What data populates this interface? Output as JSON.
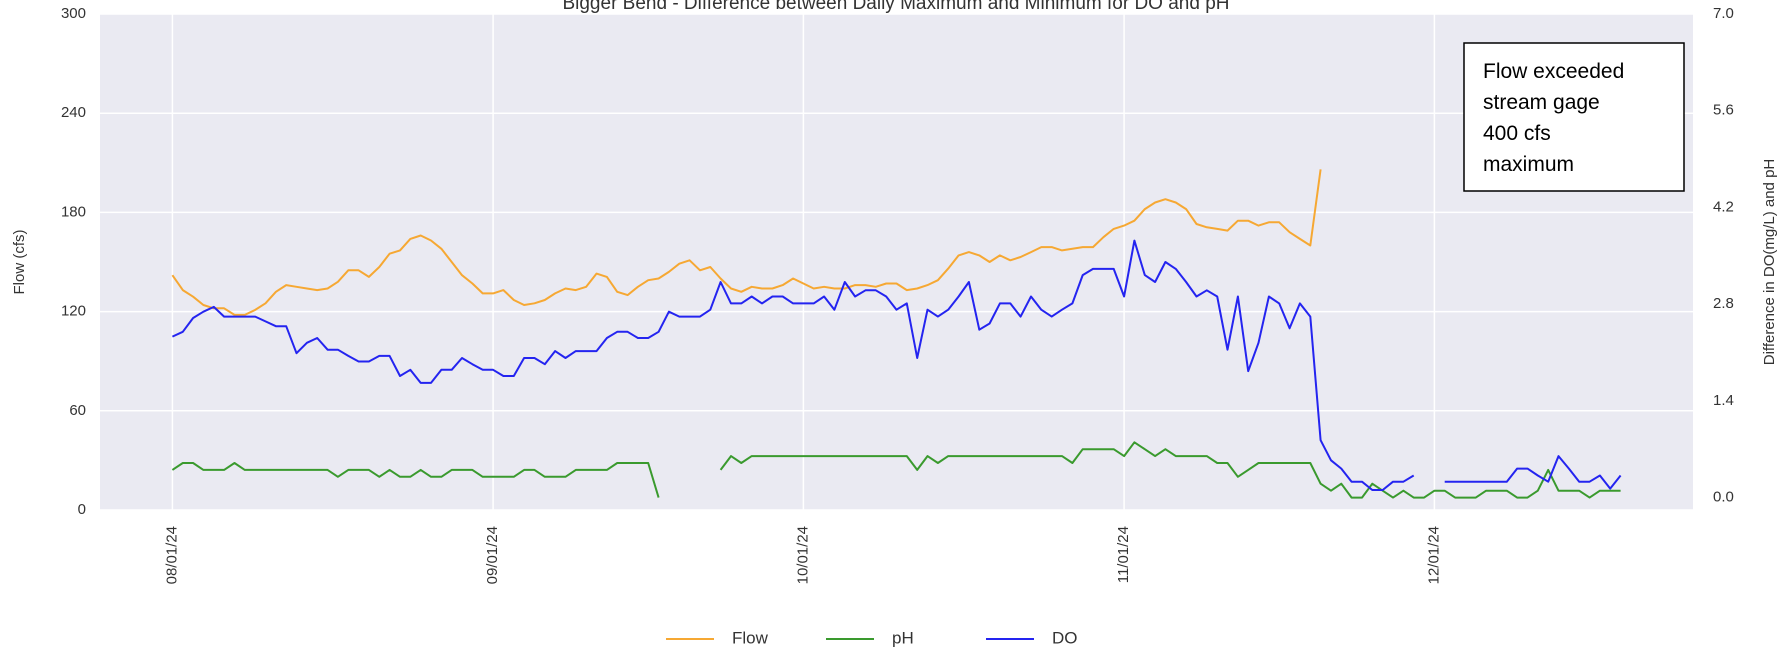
{
  "chart_data": {
    "type": "line",
    "title": "Bigger Bend - Difference between Daily Maximum and Minimum for DO and pH",
    "ylabel": "Flow (cfs)",
    "y2label": "Difference in DO(mg/L) and pH",
    "annotation": [
      "Flow exceeded",
      "stream gage",
      "400 cfs",
      "maximum"
    ],
    "grid": true,
    "legend": "bottom",
    "x": [
      "08/01/24",
      "08/02/24",
      "08/03/24",
      "08/04/24",
      "08/05/24",
      "08/06/24",
      "08/07/24",
      "08/08/24",
      "08/09/24",
      "08/10/24",
      "08/11/24",
      "08/12/24",
      "08/13/24",
      "08/14/24",
      "08/15/24",
      "08/16/24",
      "08/17/24",
      "08/18/24",
      "08/19/24",
      "08/20/24",
      "08/21/24",
      "08/22/24",
      "08/23/24",
      "08/24/24",
      "08/25/24",
      "08/26/24",
      "08/27/24",
      "08/28/24",
      "08/29/24",
      "08/30/24",
      "08/31/24",
      "09/01/24",
      "09/02/24",
      "09/03/24",
      "09/04/24",
      "09/05/24",
      "09/06/24",
      "09/07/24",
      "09/08/24",
      "09/09/24",
      "09/10/24",
      "09/11/24",
      "09/12/24",
      "09/13/24",
      "09/14/24",
      "09/15/24",
      "09/16/24",
      "09/17/24",
      "09/18/24",
      "09/19/24",
      "09/20/24",
      "09/21/24",
      "09/22/24",
      "09/23/24",
      "09/24/24",
      "09/25/24",
      "09/26/24",
      "09/27/24",
      "09/28/24",
      "09/29/24",
      "09/30/24",
      "10/01/24",
      "10/02/24",
      "10/03/24",
      "10/04/24",
      "10/05/24",
      "10/06/24",
      "10/07/24",
      "10/08/24",
      "10/09/24",
      "10/10/24",
      "10/11/24",
      "10/12/24",
      "10/13/24",
      "10/14/24",
      "10/15/24",
      "10/16/24",
      "10/17/24",
      "10/18/24",
      "10/19/24",
      "10/20/24",
      "10/21/24",
      "10/22/24",
      "10/23/24",
      "10/24/24",
      "10/25/24",
      "10/26/24",
      "10/27/24",
      "10/28/24",
      "10/29/24",
      "10/30/24",
      "10/31/24",
      "11/01/24",
      "11/02/24",
      "11/03/24",
      "11/04/24",
      "11/05/24",
      "11/06/24",
      "11/07/24",
      "11/08/24",
      "11/09/24",
      "11/10/24",
      "11/11/24",
      "11/12/24",
      "11/13/24",
      "11/14/24",
      "11/15/24",
      "11/16/24",
      "11/17/24",
      "11/18/24",
      "11/19/24",
      "11/20/24",
      "11/21/24",
      "11/22/24",
      "11/23/24",
      "11/24/24",
      "11/25/24",
      "11/26/24",
      "11/27/24",
      "11/28/24",
      "11/29/24",
      "11/30/24",
      "12/01/24",
      "12/02/24",
      "12/03/24",
      "12/04/24",
      "12/05/24",
      "12/06/24",
      "12/07/24",
      "12/08/24",
      "12/09/24",
      "12/10/24",
      "12/11/24",
      "12/12/24",
      "12/13/24",
      "12/14/24",
      "12/15/24",
      "12/16/24",
      "12/17/24",
      "12/18/24",
      "12/19/24"
    ],
    "xlim": [
      "07/25/24",
      "12/26/24"
    ],
    "xticks": [
      "08/01/24",
      "09/01/24",
      "10/01/24",
      "11/01/24",
      "12/01/24"
    ],
    "ylim": [
      0,
      300
    ],
    "yticks": [
      0,
      60,
      120,
      180,
      240,
      300
    ],
    "y2lim": [
      -0.18,
      7.0
    ],
    "y2ticks": [
      {
        "value": 0,
        "label": "0.0"
      },
      1.4,
      2.8,
      4.2,
      5.6,
      {
        "value": 7,
        "label": "7.0"
      }
    ],
    "series": [
      {
        "name": "Flow",
        "color": "#f6a833",
        "values": [
          142,
          133,
          129,
          124,
          122,
          122,
          118,
          118,
          121,
          125,
          132,
          136,
          135,
          134,
          133,
          134,
          138,
          145,
          145,
          141,
          147,
          155,
          157,
          164,
          166,
          163,
          158,
          150,
          142,
          137,
          131,
          131,
          133,
          127,
          124,
          125,
          127,
          131,
          134,
          133,
          135,
          143,
          141,
          132,
          130,
          135,
          139,
          140,
          144,
          149,
          151,
          145,
          147,
          140,
          134,
          132,
          135,
          134,
          134,
          136,
          140,
          137,
          134,
          135,
          134,
          134,
          136,
          136,
          135,
          137,
          137,
          133,
          134,
          136,
          139,
          146,
          154,
          156,
          154,
          150,
          154,
          151,
          153,
          156,
          159,
          159,
          157,
          158,
          159,
          159,
          165,
          170,
          172,
          175,
          182,
          186,
          188,
          186,
          182,
          173,
          171,
          170,
          169,
          175,
          175,
          172,
          174,
          174,
          168,
          164,
          160,
          206,
          null,
          null,
          null,
          null,
          null,
          null,
          null,
          null,
          null,
          null,
          null,
          null,
          null,
          null,
          null,
          null,
          null,
          null,
          null,
          null,
          null,
          null,
          null,
          null,
          null,
          null,
          null,
          null,
          null
        ]
      },
      {
        "name": "pH",
        "color": "#3a9a2e",
        "axis": "y2",
        "values": [
          0.4,
          0.5,
          0.5,
          0.4,
          0.4,
          0.4,
          0.5,
          0.4,
          0.4,
          0.4,
          0.4,
          0.4,
          0.4,
          0.4,
          0.4,
          0.4,
          0.3,
          0.4,
          0.4,
          0.4,
          0.3,
          0.4,
          0.3,
          0.3,
          0.4,
          0.3,
          0.3,
          0.4,
          0.4,
          0.4,
          0.3,
          0.3,
          0.3,
          0.3,
          0.4,
          0.4,
          0.3,
          0.3,
          0.3,
          0.4,
          0.4,
          0.4,
          0.4,
          0.5,
          0.5,
          0.5,
          0.5,
          0.0,
          null,
          null,
          null,
          null,
          null,
          0.4,
          0.6,
          0.5,
          0.6,
          0.6,
          0.6,
          0.6,
          0.6,
          0.6,
          0.6,
          0.6,
          0.6,
          0.6,
          0.6,
          0.6,
          0.6,
          0.6,
          0.6,
          0.6,
          0.4,
          0.6,
          0.5,
          0.6,
          0.6,
          0.6,
          0.6,
          0.6,
          0.6,
          0.6,
          0.6,
          0.6,
          0.6,
          0.6,
          0.6,
          0.5,
          0.7,
          0.7,
          0.7,
          0.7,
          0.6,
          0.8,
          0.7,
          0.6,
          0.7,
          0.6,
          0.6,
          0.6,
          0.6,
          0.5,
          0.5,
          0.3,
          0.4,
          0.5,
          0.5,
          0.5,
          0.5,
          0.5,
          0.5,
          0.2,
          0.1,
          0.2,
          0.0,
          0.0,
          0.2,
          0.1,
          0.0,
          0.1,
          0.0,
          0.0,
          0.1,
          0.1,
          0.0,
          0.0,
          0.0,
          0.1,
          0.1,
          0.1,
          0.0,
          0.0,
          0.1,
          0.4,
          0.1,
          0.1,
          0.1,
          0.0,
          0.1,
          0.1,
          0.1
        ]
      },
      {
        "name": "DO",
        "color": "#2424f0",
        "axis": "y2",
        "values": [
          2.33,
          2.4,
          2.6,
          2.69,
          2.76,
          2.62,
          2.62,
          2.62,
          2.62,
          2.55,
          2.48,
          2.48,
          2.09,
          2.24,
          2.31,
          2.14,
          2.14,
          2.05,
          1.97,
          1.97,
          2.05,
          2.05,
          1.76,
          1.85,
          1.66,
          1.66,
          1.85,
          1.85,
          2.02,
          1.93,
          1.85,
          1.85,
          1.76,
          1.76,
          2.02,
          2.02,
          1.93,
          2.12,
          2.02,
          2.12,
          2.12,
          2.12,
          2.31,
          2.4,
          2.4,
          2.31,
          2.31,
          2.4,
          2.69,
          2.62,
          2.62,
          2.62,
          2.72,
          3.12,
          2.81,
          2.81,
          2.91,
          2.81,
          2.91,
          2.91,
          2.81,
          2.81,
          2.81,
          2.91,
          2.72,
          3.12,
          2.91,
          3.0,
          3.0,
          2.91,
          2.72,
          2.81,
          2.02,
          2.72,
          2.62,
          2.72,
          2.91,
          3.12,
          2.43,
          2.52,
          2.81,
          2.81,
          2.62,
          2.91,
          2.72,
          2.62,
          2.72,
          2.81,
          3.22,
          3.31,
          3.31,
          3.31,
          2.91,
          3.72,
          3.22,
          3.12,
          3.41,
          3.31,
          3.12,
          2.91,
          3.0,
          2.91,
          2.14,
          2.91,
          1.83,
          2.24,
          2.91,
          2.81,
          2.45,
          2.81,
          2.62,
          0.83,
          0.54,
          0.42,
          0.23,
          0.23,
          0.11,
          0.11,
          0.23,
          0.23,
          0.32,
          null,
          null,
          0.23,
          0.23,
          0.23,
          0.23,
          0.23,
          0.23,
          0.23,
          0.42,
          0.42,
          0.32,
          0.23,
          0.6,
          0.42,
          0.23,
          0.23,
          0.32,
          0.13,
          0.32
        ]
      }
    ]
  }
}
